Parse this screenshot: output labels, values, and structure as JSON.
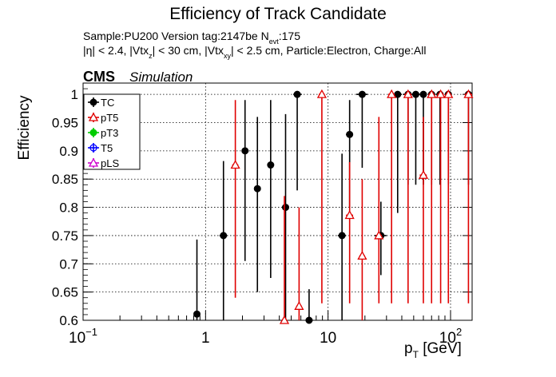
{
  "header": {
    "title": "Efficiency of Track Candidate",
    "info_line1": "Sample:PU200   Version tag:2147be  N",
    "info_line1_sub": "evt",
    "info_line1_end": ":175",
    "info_line2_parts": [
      {
        "t": "|η| < 2.4, |Vtx",
        "sub": false
      },
      {
        "t": "z",
        "sub": true
      },
      {
        "t": "| < 30 cm, |Vtx",
        "sub": false
      },
      {
        "t": "xy",
        "sub": true
      },
      {
        "t": "| < 2.5 cm, Particle:Electron, Charge:All",
        "sub": false
      }
    ],
    "cms_label": "CMS",
    "sim_label": "Simulation"
  },
  "chart_data": {
    "type": "scatter",
    "title": "Efficiency of Track Candidate",
    "xlabel_main": "p",
    "xlabel_sub": "T",
    "xlabel_unit": " [GeV]",
    "ylabel": "Efficiency",
    "x_scale": "log",
    "xlim": [
      0.1,
      150
    ],
    "ylim": [
      0.6,
      1.02
    ],
    "grid": true,
    "legend_position": "top-left",
    "x_ticks": [
      {
        "base": "10",
        "exp": "−1",
        "value": 0.1
      },
      {
        "base": "1",
        "exp": "",
        "value": 1
      },
      {
        "base": "10",
        "exp": "",
        "value": 10
      },
      {
        "base": "10",
        "exp": "2",
        "value": 100
      }
    ],
    "y_ticks": [
      "0.6",
      "0.65",
      "0.7",
      "0.75",
      "0.8",
      "0.85",
      "0.9",
      "0.95",
      "1"
    ],
    "y_tick_values": [
      0.6,
      0.65,
      0.7,
      0.75,
      0.8,
      0.85,
      0.9,
      0.95,
      1.0
    ],
    "series": [
      {
        "name": "TC",
        "color": "#000000",
        "marker": "filled-circle",
        "points": [
          {
            "x": 0.85,
            "y": 0.611,
            "lo": 0.6,
            "hi": 0.743,
            "xlo": 0.8,
            "xhi": 0.9
          },
          {
            "x": 1.4,
            "y": 0.75,
            "lo": 0.6,
            "hi": 0.882,
            "xlo": 1.3,
            "xhi": 1.5
          },
          {
            "x": 2.1,
            "y": 0.9,
            "lo": 0.705,
            "hi": 0.99,
            "xlo": 2.0,
            "xhi": 2.25
          },
          {
            "x": 2.65,
            "y": 0.833,
            "lo": 0.65,
            "hi": 0.96,
            "xlo": 2.5,
            "xhi": 2.8
          },
          {
            "x": 3.4,
            "y": 0.875,
            "lo": 0.675,
            "hi": 0.99,
            "xlo": 3.2,
            "xhi": 3.6
          },
          {
            "x": 4.5,
            "y": 0.8,
            "lo": 0.6,
            "hi": 0.965,
            "xlo": 4.3,
            "xhi": 4.7
          },
          {
            "x": 5.6,
            "y": 1.0,
            "lo": 0.83,
            "hi": 1.0,
            "xlo": 5.2,
            "xhi": 6.1
          },
          {
            "x": 7.0,
            "y": 0.6,
            "lo": 0.6,
            "hi": 0.655,
            "xlo": 6.6,
            "xhi": 7.5
          },
          {
            "x": 13.0,
            "y": 0.75,
            "lo": 0.6,
            "hi": 0.895,
            "xlo": 12.0,
            "xhi": 14.0
          },
          {
            "x": 15.0,
            "y": 0.929,
            "lo": 0.8,
            "hi": 0.99,
            "xlo": 14.0,
            "xhi": 16.0
          },
          {
            "x": 19.0,
            "y": 1.0,
            "lo": 0.87,
            "hi": 1.0,
            "xlo": 17.0,
            "xhi": 21.0
          },
          {
            "x": 27.0,
            "y": 0.75,
            "lo": 0.68,
            "hi": 0.81,
            "xlo": 24.0,
            "xhi": 30.0
          },
          {
            "x": 37.0,
            "y": 1.0,
            "lo": 0.79,
            "hi": 1.0,
            "xlo": 34.0,
            "xhi": 40.0
          },
          {
            "x": 45.0,
            "y": 1.0,
            "lo": 0.84,
            "hi": 1.0,
            "xlo": 41.0,
            "xhi": 49.0
          },
          {
            "x": 52.0,
            "y": 1.0,
            "lo": 0.84,
            "hi": 1.0,
            "xlo": 49.0,
            "xhi": 56.0
          },
          {
            "x": 60.0,
            "y": 1.0,
            "lo": 0.84,
            "hi": 1.0,
            "xlo": 56.0,
            "xhi": 64.0
          },
          {
            "x": 70.0,
            "y": 1.0,
            "lo": 0.84,
            "hi": 1.0,
            "xlo": 65.0,
            "xhi": 75.0
          },
          {
            "x": 82.0,
            "y": 1.0,
            "lo": 0.84,
            "hi": 1.0,
            "xlo": 76.0,
            "xhi": 88.0
          },
          {
            "x": 96.0,
            "y": 1.0,
            "lo": 0.84,
            "hi": 1.0,
            "xlo": 90.0,
            "xhi": 102.0
          },
          {
            "x": 140.0,
            "y": 1.0,
            "lo": 0.84,
            "hi": 1.0,
            "xlo": 130.0,
            "xhi": 150.0
          }
        ]
      },
      {
        "name": "pT5",
        "color": "#e00000",
        "marker": "open-triangle",
        "points": [
          {
            "x": 1.75,
            "y": 0.875,
            "lo": 0.64,
            "hi": 0.99,
            "xlo": 1.65,
            "xhi": 1.85
          },
          {
            "x": 4.4,
            "y": 0.6,
            "lo": 0.6,
            "hi": 0.82,
            "xlo": 4.2,
            "xhi": 4.6
          },
          {
            "x": 5.8,
            "y": 0.625,
            "lo": 0.6,
            "hi": 0.8,
            "xlo": 5.5,
            "xhi": 6.1
          },
          {
            "x": 8.9,
            "y": 1.0,
            "lo": 0.63,
            "hi": 1.0,
            "xlo": 8.4,
            "xhi": 9.4
          },
          {
            "x": 15.0,
            "y": 0.786,
            "lo": 0.63,
            "hi": 0.88,
            "xlo": 14.0,
            "xhi": 16.0
          },
          {
            "x": 19.0,
            "y": 0.714,
            "lo": 0.6,
            "hi": 0.85,
            "xlo": 18.0,
            "xhi": 20.0
          },
          {
            "x": 26.0,
            "y": 0.75,
            "lo": 0.63,
            "hi": 0.96,
            "xlo": 24.5,
            "xhi": 27.5
          },
          {
            "x": 33.0,
            "y": 1.0,
            "lo": 0.63,
            "hi": 1.0,
            "xlo": 31.0,
            "xhi": 35.0
          },
          {
            "x": 45.0,
            "y": 1.0,
            "lo": 0.63,
            "hi": 1.0,
            "xlo": 42.0,
            "xhi": 48.0
          },
          {
            "x": 60.0,
            "y": 0.857,
            "lo": 0.63,
            "hi": 0.96,
            "xlo": 56.0,
            "xhi": 64.0
          },
          {
            "x": 70.0,
            "y": 1.0,
            "lo": 0.63,
            "hi": 1.0,
            "xlo": 66.0,
            "xhi": 74.0
          },
          {
            "x": 83.0,
            "y": 1.0,
            "lo": 0.63,
            "hi": 1.0,
            "xlo": 78.0,
            "xhi": 88.0
          },
          {
            "x": 96.0,
            "y": 1.0,
            "lo": 0.63,
            "hi": 1.0,
            "xlo": 91.0,
            "xhi": 101.0
          },
          {
            "x": 140.0,
            "y": 1.0,
            "lo": 0.63,
            "hi": 1.0,
            "xlo": 130.0,
            "xhi": 150.0
          }
        ]
      },
      {
        "name": "pT3",
        "color": "#00cc00",
        "marker": "filled-circle",
        "points": []
      },
      {
        "name": "T5",
        "color": "#0000ff",
        "marker": "open-circle",
        "points": []
      },
      {
        "name": "pLS",
        "color": "#cc00cc",
        "marker": "open-triangle",
        "points": []
      }
    ]
  }
}
